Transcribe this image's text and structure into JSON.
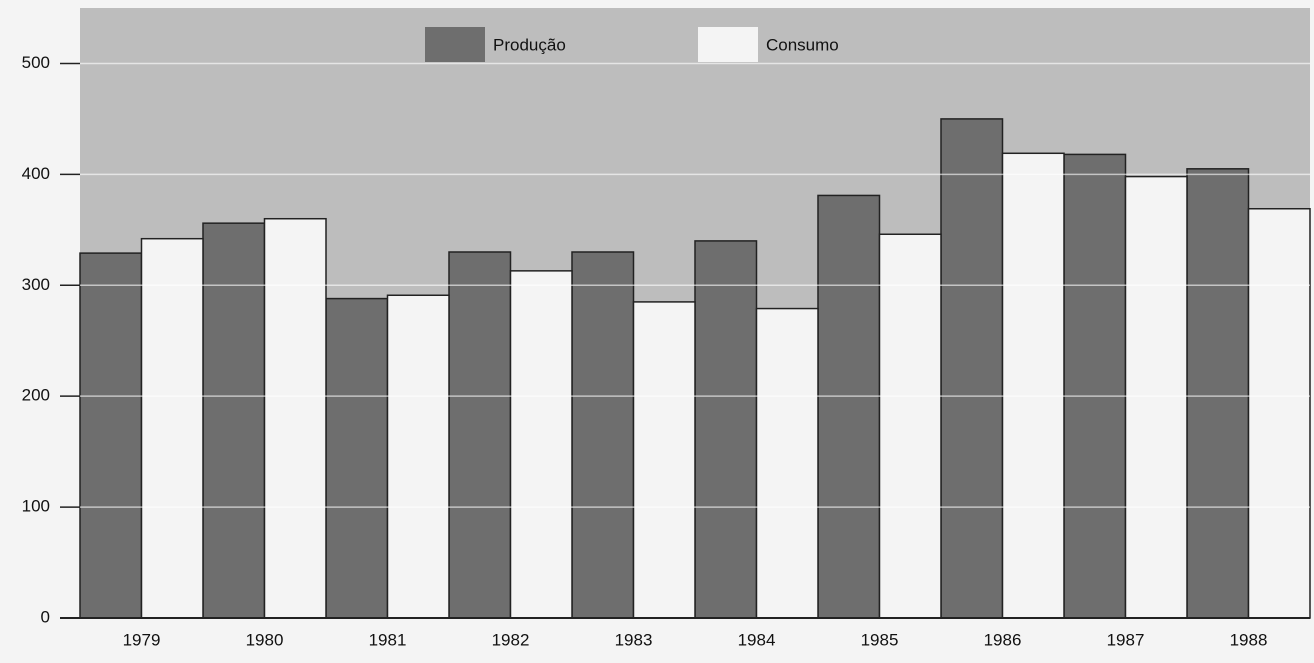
{
  "chart_data": {
    "type": "bar",
    "categories": [
      "1979",
      "1980",
      "1981",
      "1982",
      "1983",
      "1984",
      "1985",
      "1986",
      "1987",
      "1988"
    ],
    "series": [
      {
        "name": "Produção",
        "color": "#6e6e6e",
        "values": [
          329,
          356,
          288,
          330,
          330,
          340,
          381,
          450,
          418,
          405
        ]
      },
      {
        "name": "Consumo",
        "color": "#f4f4f4",
        "values": [
          342,
          360,
          291,
          313,
          285,
          279,
          346,
          419,
          398,
          369
        ]
      }
    ],
    "ylim": [
      0,
      550
    ],
    "yticks": [
      0,
      100,
      200,
      300,
      400,
      500
    ],
    "grid": true,
    "legend": "top"
  }
}
